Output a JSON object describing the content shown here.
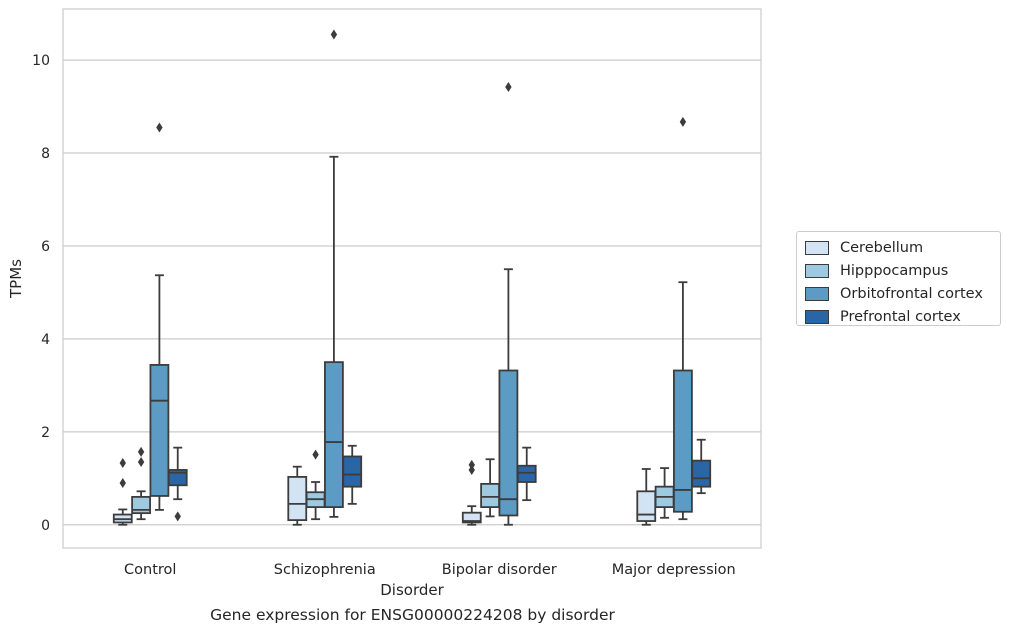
{
  "chart_data": {
    "type": "boxplot",
    "xlabel": "Disorder",
    "ylabel": "TPMs",
    "ylim": [
      -0.5,
      11.1
    ],
    "yticks": [
      0,
      2,
      4,
      6,
      8,
      10
    ],
    "grid": "horizontal",
    "legend_position": "right",
    "categories": [
      "Control",
      "Schizophrenia",
      "Bipolar disorder",
      "Major depression"
    ],
    "series": [
      {
        "name": "Cerebellum",
        "color": "#d2e3f3",
        "boxes": [
          {
            "q1": 0.05,
            "median": 0.12,
            "q3": 0.22,
            "whisker_low": 0.0,
            "whisker_high": 0.33,
            "outliers": [
              0.9,
              1.33
            ]
          },
          {
            "q1": 0.1,
            "median": 0.45,
            "q3": 1.03,
            "whisker_low": 0.0,
            "whisker_high": 1.25,
            "outliers": []
          },
          {
            "q1": 0.05,
            "median": 0.08,
            "q3": 0.26,
            "whisker_low": 0.0,
            "whisker_high": 0.4,
            "outliers": [
              1.18,
              1.29
            ]
          },
          {
            "q1": 0.08,
            "median": 0.22,
            "q3": 0.72,
            "whisker_low": 0.0,
            "whisker_high": 1.2,
            "outliers": []
          }
        ]
      },
      {
        "name": "Hipppocampus",
        "color": "#9ecae1",
        "boxes": [
          {
            "q1": 0.25,
            "median": 0.32,
            "q3": 0.6,
            "whisker_low": 0.12,
            "whisker_high": 0.72,
            "outliers": [
              1.35,
              1.57
            ]
          },
          {
            "q1": 0.38,
            "median": 0.55,
            "q3": 0.7,
            "whisker_low": 0.12,
            "whisker_high": 0.92,
            "outliers": [
              1.51
            ]
          },
          {
            "q1": 0.38,
            "median": 0.6,
            "q3": 0.88,
            "whisker_low": 0.18,
            "whisker_high": 1.41,
            "outliers": []
          },
          {
            "q1": 0.38,
            "median": 0.6,
            "q3": 0.82,
            "whisker_low": 0.15,
            "whisker_high": 1.22,
            "outliers": []
          }
        ]
      },
      {
        "name": "Orbitofrontal cortex",
        "color": "#5b9bc4",
        "boxes": [
          {
            "q1": 0.62,
            "median": 2.67,
            "q3": 3.44,
            "whisker_low": 0.32,
            "whisker_high": 5.37,
            "outliers": [
              8.55
            ]
          },
          {
            "q1": 0.38,
            "median": 1.78,
            "q3": 3.5,
            "whisker_low": 0.17,
            "whisker_high": 7.92,
            "outliers": [
              10.55
            ]
          },
          {
            "q1": 0.2,
            "median": 0.55,
            "q3": 3.32,
            "whisker_low": 0.0,
            "whisker_high": 5.5,
            "outliers": [
              9.42
            ]
          },
          {
            "q1": 0.28,
            "median": 0.75,
            "q3": 3.32,
            "whisker_low": 0.12,
            "whisker_high": 5.22,
            "outliers": [
              8.67
            ]
          }
        ]
      },
      {
        "name": "Prefrontal cortex",
        "color": "#2a66a6",
        "boxes": [
          {
            "q1": 0.85,
            "median": 1.12,
            "q3": 1.18,
            "whisker_low": 0.55,
            "whisker_high": 1.66,
            "outliers": [
              0.18
            ]
          },
          {
            "q1": 0.82,
            "median": 1.08,
            "q3": 1.47,
            "whisker_low": 0.45,
            "whisker_high": 1.7,
            "outliers": []
          },
          {
            "q1": 0.92,
            "median": 1.12,
            "q3": 1.27,
            "whisker_low": 0.53,
            "whisker_high": 1.66,
            "outliers": []
          },
          {
            "q1": 0.82,
            "median": 1.0,
            "q3": 1.38,
            "whisker_low": 0.68,
            "whisker_high": 1.83,
            "outliers": []
          }
        ]
      }
    ],
    "caption": "Gene expression for ENSG00000224208 by disorder"
  }
}
